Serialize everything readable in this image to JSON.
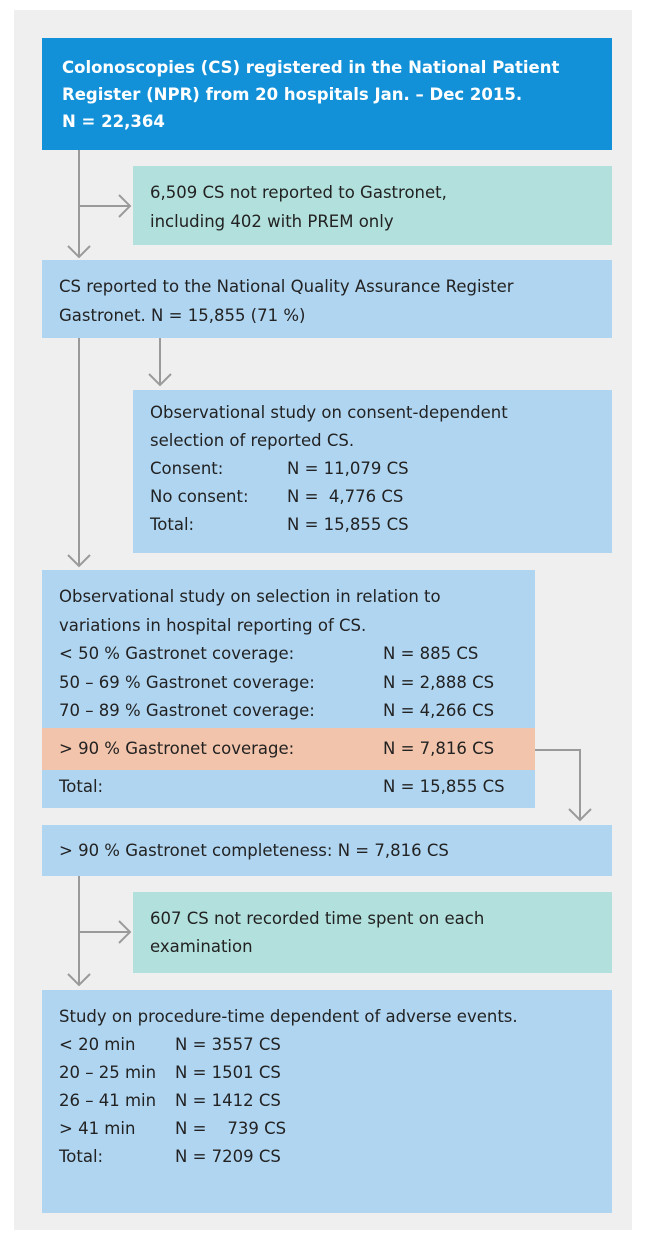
{
  "nodes": [
    {
      "lines": [
        "Colonoscopies (CS) registered in the National Patient",
        "Register (NPR) from 20 hospitals Jan. – Dec 2015.",
        "N = 22,364"
      ]
    },
    {
      "lines": [
        "6,509 CS not reported to Gastronet,",
        "including 402 with PREM only"
      ]
    },
    {
      "lines": [
        "CS reported to the National Quality Assurance Register",
        "Gastronet. N = 15,855 (71 %)"
      ]
    },
    {
      "lines": [
        "Observational study on consent-dependent",
        "selection of reported CS."
      ],
      "rows": [
        [
          "Consent:",
          "N = 11,079 CS"
        ],
        [
          "No consent:",
          "N =  4,776 CS"
        ],
        [
          "Total:",
          "N = 15,855 CS"
        ]
      ]
    },
    {
      "lines": [
        "Observational study on selection in relation to",
        "variations in hospital reporting of CS."
      ],
      "rows": [
        [
          "< 50 % Gastronet coverage:",
          "N = 885 CS"
        ],
        [
          "50 – 69 % Gastronet coverage:",
          "N = 2,888 CS"
        ],
        [
          "70 – 89 % Gastronet coverage:",
          "N = 4,266 CS"
        ]
      ]
    },
    {
      "rows": [
        [
          "> 90 % Gastronet coverage:",
          "N = 7,816 CS"
        ]
      ]
    },
    {
      "rows": [
        [
          "Total:",
          "N = 15,855 CS"
        ]
      ]
    },
    {
      "lines": [
        "> 90 % Gastronet completeness: N = 7,816 CS"
      ]
    },
    {
      "lines": [
        "607 CS not recorded time spent on each",
        "examination"
      ]
    },
    {
      "lines": [
        "Study on procedure-time dependent of adverse events."
      ],
      "rows": [
        [
          "< 20 min",
          "N = 3557 CS"
        ],
        [
          "20 – 25 min",
          "N = 1501 CS"
        ],
        [
          "26 – 41 min",
          "N = 1412 CS"
        ],
        [
          "> 41 min",
          "N =    739 CS"
        ],
        [
          "Total:",
          "N = 7209 CS"
        ]
      ]
    }
  ]
}
